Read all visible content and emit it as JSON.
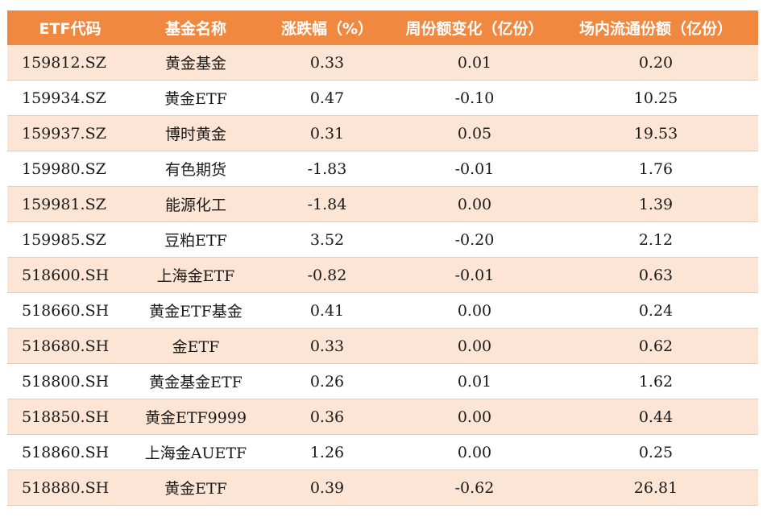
{
  "headers": [
    "ETF代码",
    "基金名称",
    "涨跌幅（%）",
    "周份额变化（亿份）",
    "场内流通份额（亿份）"
  ],
  "rows": [
    {
      "code": "159812.SZ",
      "name": "黄金基金",
      "change": "0.33",
      "weekly": "0.01",
      "float": "0.20"
    },
    {
      "code": "159934.SZ",
      "name": "黄金ETF",
      "change": "0.47",
      "weekly": "-0.10",
      "float": "10.25"
    },
    {
      "code": "159937.SZ",
      "name": "博时黄金",
      "change": "0.31",
      "weekly": "0.05",
      "float": "19.53"
    },
    {
      "code": "159980.SZ",
      "name": "有色期货",
      "change": "-1.83",
      "weekly": "-0.01",
      "float": "1.76"
    },
    {
      "code": "159981.SZ",
      "name": "能源化工",
      "change": "-1.84",
      "weekly": "0.00",
      "float": "1.39"
    },
    {
      "code": "159985.SZ",
      "name": "豆粕ETF",
      "change": "3.52",
      "weekly": "-0.20",
      "float": "2.12"
    },
    {
      "code": "518600.SH",
      "name": "上海金ETF",
      "change": "-0.82",
      "weekly": "-0.01",
      "float": "0.63"
    },
    {
      "code": "518660.SH",
      "name": "黄金ETF基金",
      "change": "0.41",
      "weekly": "0.00",
      "float": "0.24"
    },
    {
      "code": "518680.SH",
      "name": "金ETF",
      "change": "0.33",
      "weekly": "0.00",
      "float": "0.62"
    },
    {
      "code": "518800.SH",
      "name": "黄金基金ETF",
      "change": "0.26",
      "weekly": "0.01",
      "float": "1.62"
    },
    {
      "code": "518850.SH",
      "name": "黄金ETF9999",
      "change": "0.36",
      "weekly": "0.00",
      "float": "0.44"
    },
    {
      "code": "518860.SH",
      "name": "上海金AUETF",
      "change": "1.26",
      "weekly": "0.00",
      "float": "0.25"
    },
    {
      "code": "518880.SH",
      "name": "黄金ETF",
      "change": "0.39",
      "weekly": "-0.62",
      "float": "26.81"
    }
  ],
  "colors": {
    "header_bg": "#f0893f",
    "odd_row_bg": "#fce5d5",
    "even_row_bg": "#ffffff"
  }
}
